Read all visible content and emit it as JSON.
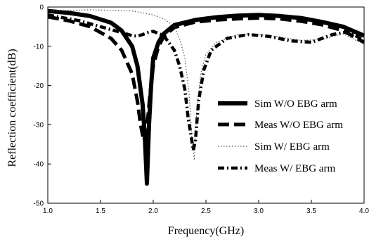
{
  "chart_data": {
    "type": "line",
    "title": "",
    "xlabel": "Frequency(GHz)",
    "ylabel": "Reflection coefficient(dB)",
    "xlim": [
      1.0,
      4.0
    ],
    "ylim": [
      -50,
      0
    ],
    "x_ticks": [
      "1.0",
      "1.5",
      "2.0",
      "2.5",
      "3.0",
      "3.5",
      "4.0"
    ],
    "y_ticks": [
      "0",
      "-10",
      "-20",
      "-30",
      "-40",
      "-50"
    ],
    "grid": false,
    "legend_position": "center-right",
    "series": [
      {
        "name": "Sim W/O EBG arm",
        "color": "#000000",
        "style": "solid-thick",
        "x": [
          1.0,
          1.2,
          1.4,
          1.6,
          1.7,
          1.8,
          1.85,
          1.9,
          1.92,
          1.94,
          1.96,
          1.98,
          2.0,
          2.05,
          2.1,
          2.2,
          2.4,
          2.6,
          2.8,
          3.0,
          3.2,
          3.4,
          3.6,
          3.8,
          4.0
        ],
        "y": [
          -1.0,
          -1.5,
          -2.3,
          -4.0,
          -6.0,
          -10.0,
          -15.0,
          -25.0,
          -33.0,
          -45.0,
          -30.0,
          -20.0,
          -13.0,
          -9.0,
          -6.8,
          -4.6,
          -3.3,
          -2.6,
          -2.2,
          -2.0,
          -2.3,
          -2.8,
          -3.8,
          -5.0,
          -7.3
        ]
      },
      {
        "name": "Meas W/O EBG arm",
        "color": "#000000",
        "style": "dashed-thick",
        "x": [
          1.0,
          1.2,
          1.4,
          1.6,
          1.7,
          1.8,
          1.85,
          1.88,
          1.91,
          1.94,
          1.97,
          2.0,
          2.05,
          2.1,
          2.2,
          2.4,
          2.6,
          2.8,
          3.0,
          3.2,
          3.4,
          3.6,
          3.8,
          4.0
        ],
        "y": [
          -2.5,
          -3.5,
          -5.0,
          -8.0,
          -11.0,
          -17.0,
          -24.0,
          -30.0,
          -34.0,
          -31.0,
          -22.0,
          -15.0,
          -10.0,
          -7.5,
          -5.2,
          -3.8,
          -3.3,
          -3.0,
          -2.8,
          -3.0,
          -3.6,
          -4.5,
          -6.0,
          -9.0
        ]
      },
      {
        "name": "Sim W/ EBG arm",
        "color": "#555555",
        "style": "dotted",
        "x": [
          1.0,
          1.4,
          1.8,
          2.0,
          2.1,
          2.2,
          2.25,
          2.3,
          2.34,
          2.37,
          2.39,
          2.41,
          2.45,
          2.5,
          2.6,
          2.8,
          3.0,
          3.2,
          3.4,
          3.6,
          3.8,
          4.0
        ],
        "y": [
          -1.0,
          -0.7,
          -1.0,
          -2.0,
          -3.0,
          -5.0,
          -8.0,
          -13.0,
          -22.0,
          -35.0,
          -39.0,
          -28.0,
          -17.0,
          -12.0,
          -9.0,
          -7.0,
          -7.0,
          -7.6,
          -8.5,
          -8.3,
          -6.8,
          -9.5
        ]
      },
      {
        "name": "Meas W/ EBG arm",
        "color": "#000000",
        "style": "dash-dot",
        "x": [
          1.0,
          1.3,
          1.5,
          1.7,
          1.8,
          1.85,
          1.9,
          1.95,
          2.0,
          2.1,
          2.2,
          2.25,
          2.3,
          2.33,
          2.36,
          2.38,
          2.4,
          2.43,
          2.48,
          2.55,
          2.7,
          2.9,
          3.1,
          3.3,
          3.5,
          3.7,
          3.85,
          4.0
        ],
        "y": [
          -2.0,
          -3.5,
          -5.0,
          -6.5,
          -7.3,
          -7.4,
          -7.0,
          -6.5,
          -6.2,
          -7.3,
          -11.0,
          -15.0,
          -21.0,
          -28.0,
          -33.0,
          -36.5,
          -34.0,
          -24.0,
          -16.0,
          -11.0,
          -8.0,
          -7.0,
          -7.5,
          -8.6,
          -9.0,
          -7.0,
          -6.3,
          -8.5
        ]
      }
    ]
  }
}
